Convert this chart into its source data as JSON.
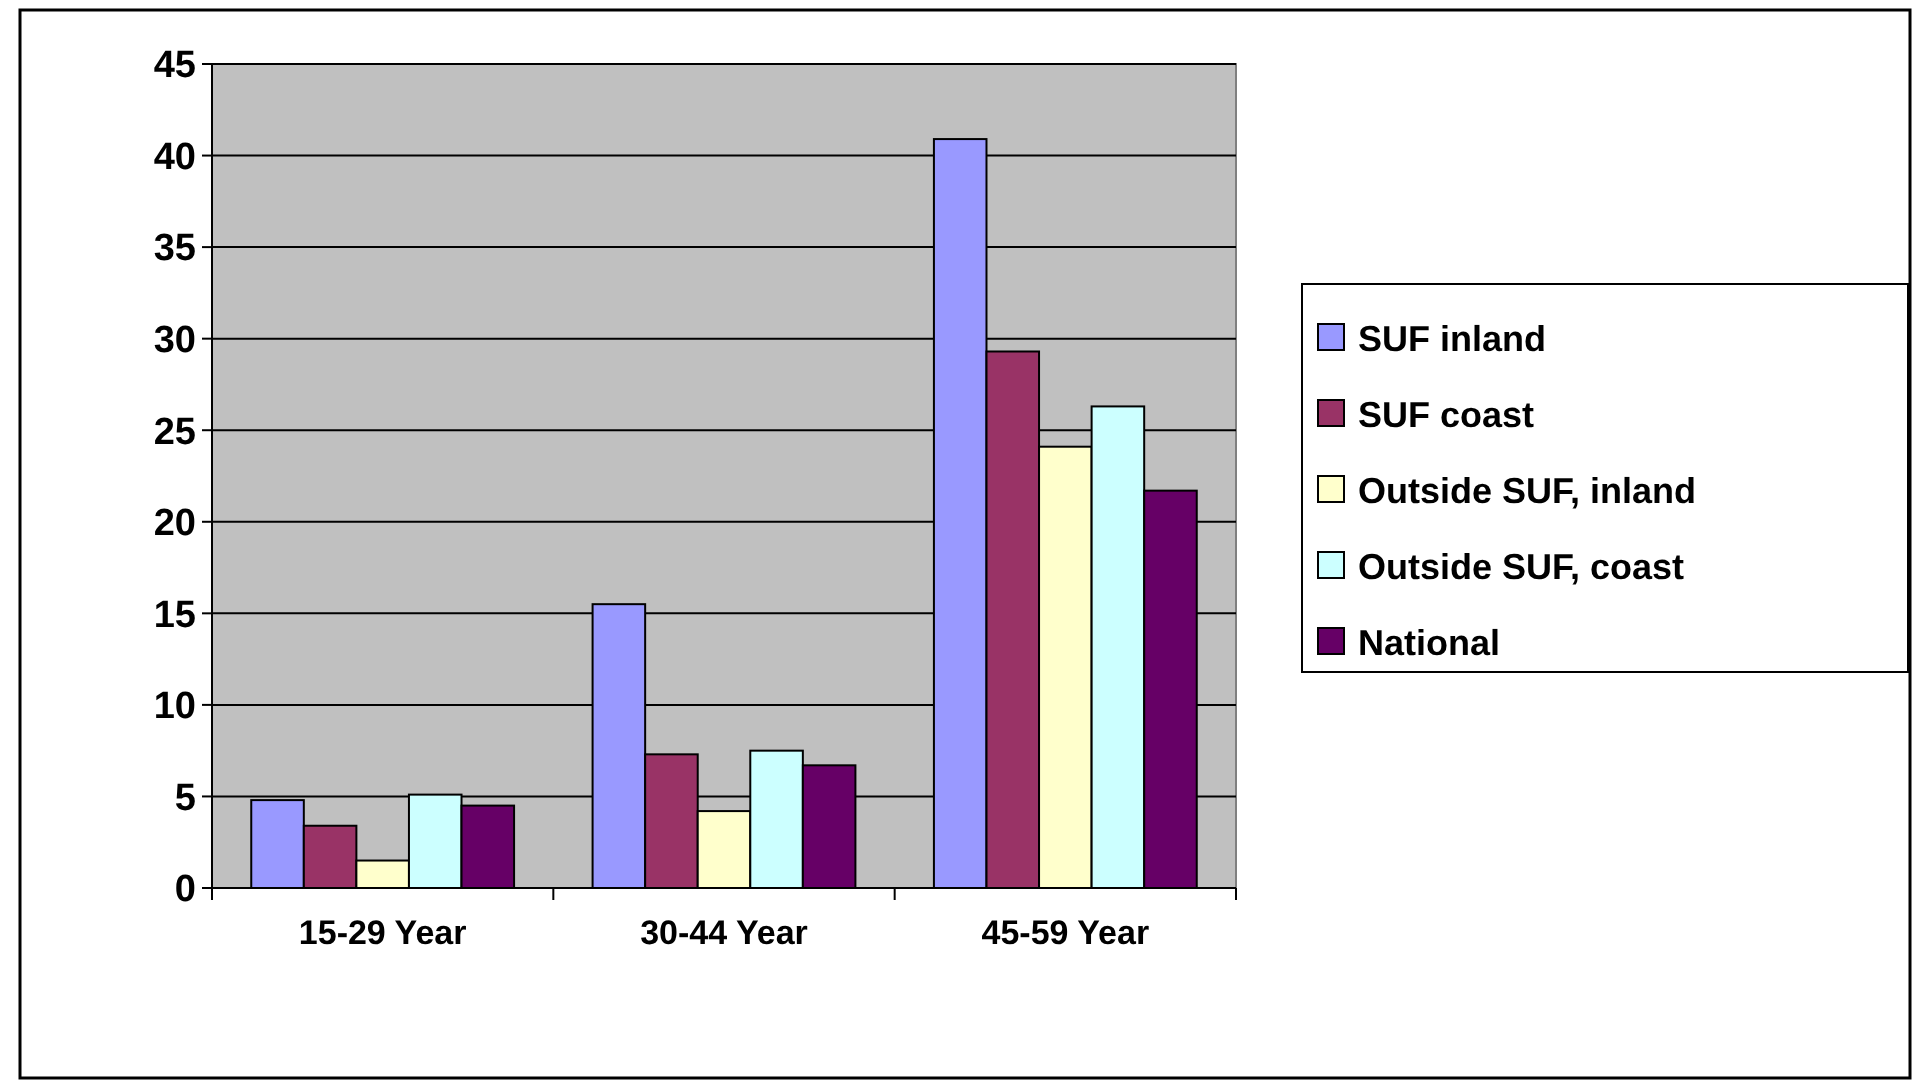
{
  "chart_data": {
    "type": "bar",
    "categories": [
      "15-29 Year",
      "30-44 Year",
      "45-59 Year"
    ],
    "series": [
      {
        "name": "SUF inland",
        "color": "#9999ff",
        "values": [
          4.8,
          15.5,
          40.9
        ]
      },
      {
        "name": "SUF coast",
        "color": "#993366",
        "values": [
          3.4,
          7.3,
          29.3
        ]
      },
      {
        "name": "Outside SUF, inland",
        "color": "#ffffcc",
        "values": [
          1.5,
          4.2,
          24.1
        ]
      },
      {
        "name": "Outside SUF, coast",
        "color": "#ccffff",
        "values": [
          5.1,
          7.5,
          26.3
        ]
      },
      {
        "name": "National",
        "color": "#660066",
        "values": [
          4.5,
          6.7,
          21.7
        ]
      }
    ],
    "ylim": [
      0,
      45
    ],
    "yticks": [
      0,
      5,
      10,
      15,
      20,
      25,
      30,
      35,
      40,
      45
    ],
    "grid": "y",
    "legend": "right"
  }
}
